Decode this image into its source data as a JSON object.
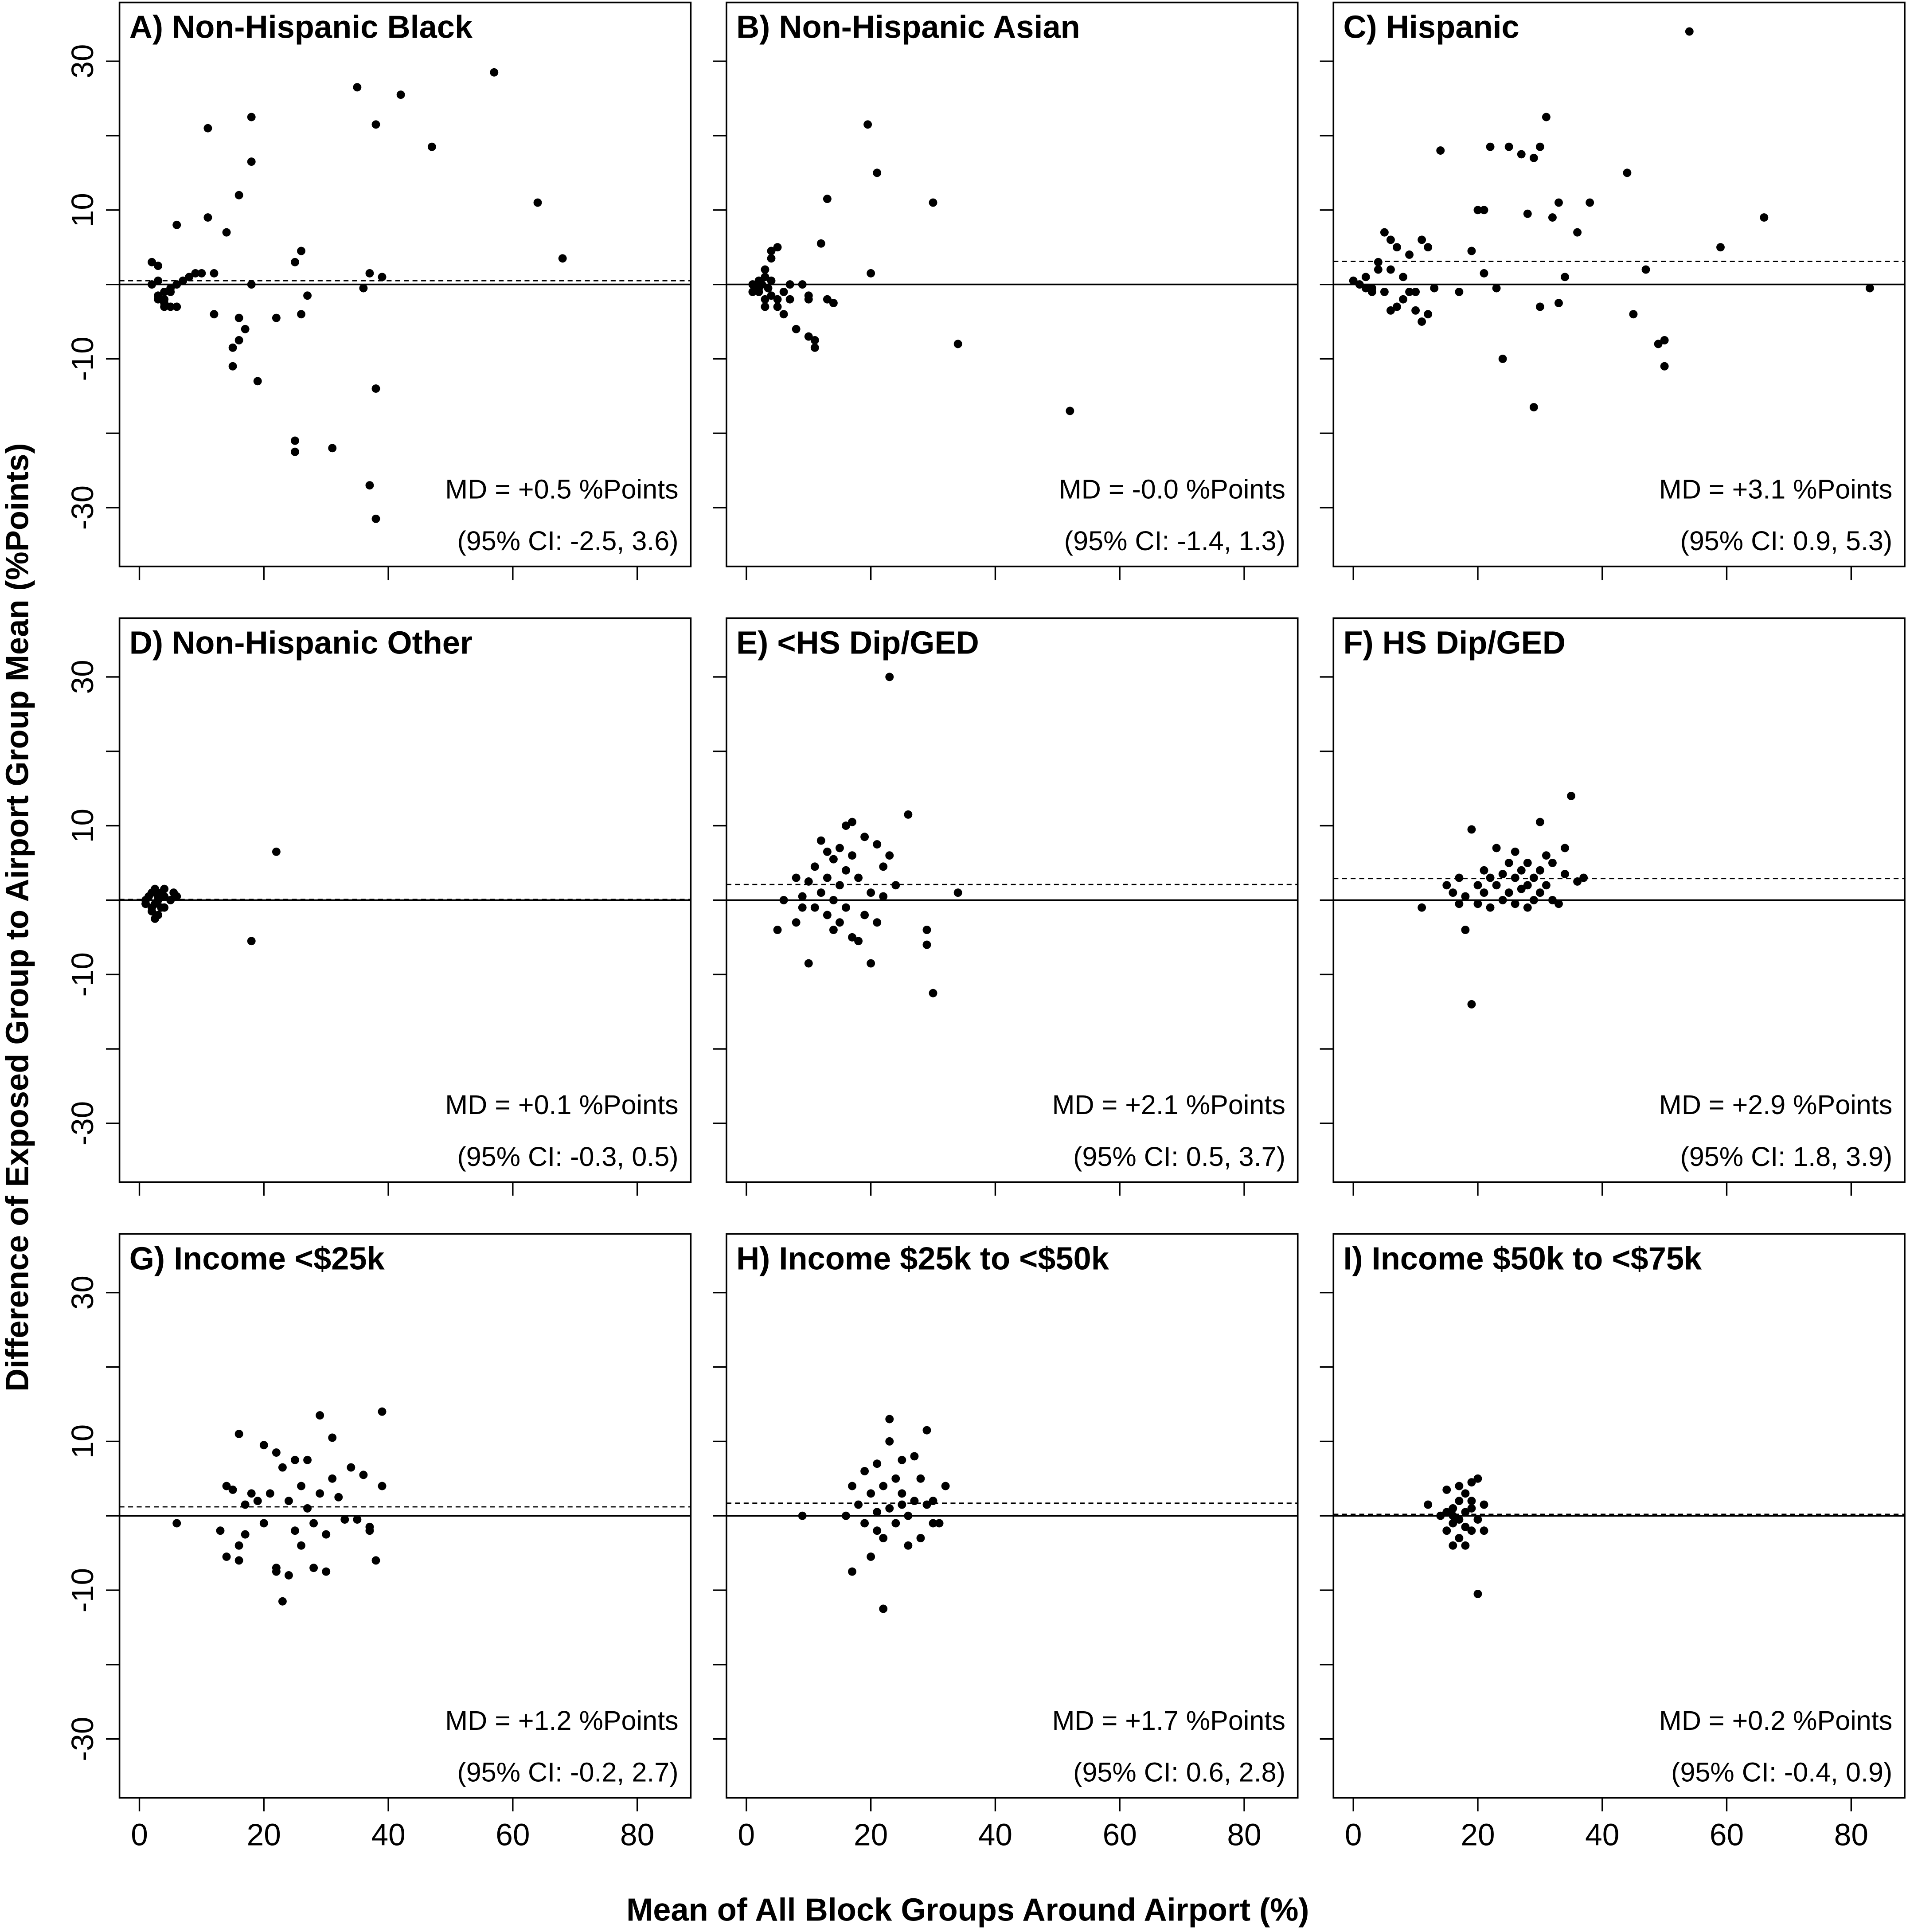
{
  "axis_labels": {
    "x": "Mean of All Block Groups Around Airport (%)",
    "y": "Difference of Exposed Group to Airport Group Mean (%Points)"
  },
  "chart_data": [
    {
      "type": "scatter",
      "title": "A) Non-Hispanic Black",
      "color": "#000000",
      "reference_line": 0,
      "md": 0.5,
      "annotations": [
        "MD = +0.5 %Points",
        "(95% CI: -2.5, 3.6)"
      ],
      "x": [
        2,
        3,
        3,
        4,
        3,
        4,
        5,
        6,
        4,
        5,
        6,
        7,
        5,
        6,
        8,
        9,
        10,
        11,
        11,
        12,
        12,
        14,
        15,
        15,
        16,
        16,
        16,
        17,
        18,
        18,
        18,
        19,
        22,
        25,
        25,
        25,
        26,
        26,
        27,
        31,
        35,
        36,
        37,
        37,
        38,
        38,
        38,
        39,
        42,
        47,
        57,
        64,
        68,
        3,
        2,
        4
      ],
      "y": [
        3,
        2.5,
        0.5,
        -1,
        -1.5,
        -2,
        -3,
        -3,
        -3,
        -1,
        0,
        0.5,
        -0.5,
        8,
        1,
        1.5,
        1.5,
        21,
        9,
        -4,
        1.5,
        7,
        -11,
        -8.5,
        12,
        -4.5,
        -7.5,
        -6,
        16.5,
        0,
        22.5,
        -13,
        -4.5,
        -21,
        -22.5,
        3,
        4.5,
        -4,
        -1.5,
        -22,
        26.5,
        -0.5,
        -27,
        1.5,
        21.5,
        -14,
        -31.5,
        1,
        25.5,
        18.5,
        28.5,
        11,
        3.5,
        -2,
        0,
        -2.5
      ],
      "xlim": [
        -3.2,
        88.6
      ],
      "ylim": [
        -37.9,
        37.9
      ],
      "xticks": [
        {
          "value": 0,
          "label": null
        },
        {
          "value": 20,
          "label": null
        },
        {
          "value": 40,
          "label": null
        },
        {
          "value": 60,
          "label": null
        },
        {
          "value": 80,
          "label": null
        }
      ],
      "yticks": [
        -30,
        {
          "value": -20,
          "label": null
        },
        -10,
        {
          "value": 0,
          "label": null
        },
        10,
        {
          "value": 20,
          "label": null
        },
        30
      ]
    },
    {
      "type": "scatter",
      "title": "B) Non-Hispanic Asian",
      "color": "#000000",
      "reference_line": 0,
      "md": -0.0,
      "annotations": [
        "MD = -0.0 %Points",
        "(95% CI: -1.4, 1.3)"
      ],
      "x": [
        1,
        1.5,
        2,
        2,
        2.5,
        3,
        3,
        3.5,
        4,
        4,
        4,
        5,
        4,
        5,
        5,
        6,
        6,
        7,
        7,
        8,
        9,
        10,
        10,
        11,
        10,
        11,
        12,
        13,
        13,
        14,
        19.5,
        20,
        21,
        30,
        34,
        52,
        3,
        2,
        1,
        3
      ],
      "y": [
        0,
        -0.5,
        0.5,
        -1,
        0,
        -2,
        1,
        -0.5,
        -1.5,
        0.5,
        4.5,
        5,
        3.5,
        -2,
        -3,
        -1,
        -4,
        0,
        -2,
        -6,
        0,
        -1.5,
        -7,
        -8.5,
        -2,
        -7.5,
        5.5,
        11.5,
        -2,
        -2.5,
        21.5,
        1.5,
        15,
        11,
        -8,
        -17,
        2,
        -0.5,
        -1,
        -3
      ],
      "xlim": [
        -3.2,
        88.6
      ],
      "ylim": [
        -37.9,
        37.9
      ],
      "xticks": [
        {
          "value": 0,
          "label": null
        },
        {
          "value": 20,
          "label": null
        },
        {
          "value": 40,
          "label": null
        },
        {
          "value": 60,
          "label": null
        },
        {
          "value": 80,
          "label": null
        }
      ],
      "yticks": [
        {
          "value": -30,
          "label": null
        },
        {
          "value": -20,
          "label": null
        },
        {
          "value": -10,
          "label": null
        },
        {
          "value": 0,
          "label": null
        },
        {
          "value": 10,
          "label": null
        },
        {
          "value": 20,
          "label": null
        },
        {
          "value": 30,
          "label": null
        }
      ]
    },
    {
      "type": "scatter",
      "title": "C) Hispanic",
      "color": "#000000",
      "reference_line": 0,
      "md": 3.1,
      "annotations": [
        "MD = +3.1 %Points",
        "(95% CI: 0.9, 5.3)"
      ],
      "x": [
        0,
        1,
        2,
        2,
        3,
        3,
        4,
        4,
        5,
        5,
        6,
        6,
        6,
        7,
        7,
        8,
        8,
        9,
        9,
        10,
        10,
        11,
        11,
        12,
        12,
        13,
        14,
        17,
        19,
        20,
        21,
        21,
        22,
        23,
        24,
        25,
        27,
        28,
        29,
        29,
        30,
        30,
        31,
        32,
        33,
        33,
        34,
        36,
        38,
        44,
        45,
        47,
        49,
        50,
        50,
        54,
        59,
        66,
        83
      ],
      "y": [
        0.5,
        0,
        -0.5,
        1,
        -0.5,
        -1,
        2,
        3,
        7,
        -1,
        6,
        2,
        -3.5,
        -3,
        5,
        -2,
        1,
        4,
        -1,
        -3.5,
        -1,
        -5,
        6,
        -4,
        5,
        -0.5,
        18,
        -1,
        4.5,
        10,
        10,
        1.5,
        18.5,
        -0.5,
        -10,
        18.5,
        17.5,
        9.5,
        -16.5,
        17,
        18.5,
        -3,
        22.5,
        9,
        -2.5,
        11,
        1,
        7,
        11,
        15,
        -4,
        2,
        -8,
        -11,
        -7.5,
        34,
        5,
        9,
        -0.5
      ],
      "xlim": [
        -3.2,
        88.6
      ],
      "ylim": [
        -37.9,
        37.9
      ],
      "xticks": [
        {
          "value": 0,
          "label": null
        },
        {
          "value": 20,
          "label": null
        },
        {
          "value": 40,
          "label": null
        },
        {
          "value": 60,
          "label": null
        },
        {
          "value": 80,
          "label": null
        }
      ],
      "yticks": [
        {
          "value": -30,
          "label": null
        },
        {
          "value": -20,
          "label": null
        },
        {
          "value": -10,
          "label": null
        },
        {
          "value": 0,
          "label": null
        },
        {
          "value": 10,
          "label": null
        },
        {
          "value": 20,
          "label": null
        },
        {
          "value": 30,
          "label": null
        }
      ]
    },
    {
      "type": "scatter",
      "title": "D) Non-Hispanic Other",
      "color": "#000000",
      "reference_line": 0,
      "md": 0.1,
      "annotations": [
        "MD = +0.1 %Points",
        "(95% CI: -0.3, 0.5)"
      ],
      "x": [
        1,
        1.5,
        2,
        2,
        2.5,
        2.5,
        3,
        3,
        3.5,
        3,
        4,
        4,
        5,
        5.5,
        6,
        2,
        1,
        4,
        3.5,
        2.5,
        22,
        18
      ],
      "y": [
        0,
        0.5,
        -1,
        1,
        1.5,
        -0.5,
        0,
        -2,
        1,
        0.5,
        -1,
        0.5,
        0,
        1,
        0.5,
        -1.5,
        -0.5,
        1.5,
        -1,
        -2.5,
        6.5,
        -5.5
      ],
      "xlim": [
        -3.2,
        88.6
      ],
      "ylim": [
        -37.9,
        37.9
      ],
      "xticks": [
        {
          "value": 0,
          "label": null
        },
        {
          "value": 20,
          "label": null
        },
        {
          "value": 40,
          "label": null
        },
        {
          "value": 60,
          "label": null
        },
        {
          "value": 80,
          "label": null
        }
      ],
      "yticks": [
        -30,
        {
          "value": -20,
          "label": null
        },
        -10,
        {
          "value": 0,
          "label": null
        },
        10,
        {
          "value": 20,
          "label": null
        },
        30
      ]
    },
    {
      "type": "scatter",
      "title": "E) <HS Dip/GED",
      "color": "#000000",
      "reference_line": 0,
      "md": 2.1,
      "annotations": [
        "MD = +2.1 %Points",
        "(95% CI: 0.5, 3.7)"
      ],
      "x": [
        5,
        6,
        8,
        8,
        9,
        9,
        10,
        10,
        11,
        11,
        12,
        12,
        13,
        13,
        13,
        14,
        14,
        14,
        15,
        15,
        15,
        16,
        16,
        16,
        17,
        17,
        17,
        18,
        18,
        19,
        19,
        20,
        20,
        21,
        21,
        22,
        22,
        23,
        23,
        24,
        26,
        29,
        29,
        30,
        34
      ],
      "y": [
        -4,
        0,
        -3,
        3,
        -1,
        0.5,
        -8.5,
        2.5,
        -1,
        4.5,
        1,
        8,
        6.5,
        -2,
        3,
        5.5,
        0,
        -4,
        7,
        2,
        -3,
        10,
        4,
        -1,
        10.5,
        6,
        -5,
        3,
        -5.5,
        8.5,
        -2,
        -8.5,
        1,
        7.5,
        -3,
        4.5,
        0.5,
        30,
        6,
        2,
        11.5,
        -4,
        -6,
        -12.5,
        1
      ],
      "xlim": [
        -3.2,
        88.6
      ],
      "ylim": [
        -37.9,
        37.9
      ],
      "xticks": [
        {
          "value": 0,
          "label": null
        },
        {
          "value": 20,
          "label": null
        },
        {
          "value": 40,
          "label": null
        },
        {
          "value": 60,
          "label": null
        },
        {
          "value": 80,
          "label": null
        }
      ],
      "yticks": [
        {
          "value": -30,
          "label": null
        },
        {
          "value": -20,
          "label": null
        },
        {
          "value": -10,
          "label": null
        },
        {
          "value": 0,
          "label": null
        },
        {
          "value": 10,
          "label": null
        },
        {
          "value": 20,
          "label": null
        },
        {
          "value": 30,
          "label": null
        }
      ]
    },
    {
      "type": "scatter",
      "title": "F) HS Dip/GED",
      "color": "#000000",
      "reference_line": 0,
      "md": 2.9,
      "annotations": [
        "MD = +2.9 %Points",
        "(95% CI: 1.8, 3.9)"
      ],
      "x": [
        11,
        15,
        16,
        17,
        17,
        18,
        18,
        19,
        19,
        20,
        20,
        21,
        21,
        22,
        22,
        23,
        23,
        24,
        24,
        25,
        25,
        26,
        26,
        26,
        27,
        27,
        28,
        28,
        28,
        29,
        29,
        30,
        30,
        30,
        31,
        31,
        32,
        32,
        33,
        34,
        34,
        35,
        36,
        37
      ],
      "y": [
        -1,
        2,
        1,
        3,
        -0.5,
        -4,
        0.5,
        9.5,
        -14,
        2,
        -0.5,
        4,
        1,
        3,
        -1,
        7,
        2,
        3.5,
        0,
        5,
        1,
        6.5,
        3,
        -0.5,
        4,
        1.5,
        5,
        2,
        -1,
        3,
        0,
        10.5,
        4,
        1,
        6,
        2,
        5,
        0,
        -0.5,
        7,
        3.5,
        14,
        2.5,
        3
      ],
      "xlim": [
        -3.2,
        88.6
      ],
      "ylim": [
        -37.9,
        37.9
      ],
      "xticks": [
        {
          "value": 0,
          "label": null
        },
        {
          "value": 20,
          "label": null
        },
        {
          "value": 40,
          "label": null
        },
        {
          "value": 60,
          "label": null
        },
        {
          "value": 80,
          "label": null
        }
      ],
      "yticks": [
        {
          "value": -30,
          "label": null
        },
        {
          "value": -20,
          "label": null
        },
        {
          "value": -10,
          "label": null
        },
        {
          "value": 0,
          "label": null
        },
        {
          "value": 10,
          "label": null
        },
        {
          "value": 20,
          "label": null
        },
        {
          "value": 30,
          "label": null
        }
      ]
    },
    {
      "type": "scatter",
      "title": "G) Income <$25k",
      "color": "#000000",
      "reference_line": 0,
      "md": 1.2,
      "annotations": [
        "MD = +1.2 %Points",
        "(95% CI: -0.2, 2.7)"
      ],
      "x": [
        6,
        13,
        14,
        14,
        15,
        16,
        16,
        16,
        17,
        17,
        18,
        19,
        20,
        20,
        21,
        22,
        22,
        22,
        23,
        23,
        24,
        24,
        25,
        25,
        26,
        26,
        27,
        27,
        28,
        28,
        29,
        29,
        30,
        30,
        31,
        31,
        32,
        33,
        34,
        35,
        36,
        37,
        37,
        38,
        39,
        39
      ],
      "y": [
        -1,
        -2,
        -5.5,
        4,
        3.5,
        11,
        -6,
        -4,
        -2.5,
        1.5,
        3,
        2,
        9.5,
        -1,
        3,
        -7,
        8.5,
        -7.5,
        -11.5,
        6.5,
        -8,
        2,
        -2,
        7.5,
        -4,
        4,
        1,
        7.5,
        -7,
        -1,
        3,
        13.5,
        -7.5,
        -2.5,
        5,
        10.5,
        2.5,
        -0.5,
        6.5,
        -0.5,
        5.5,
        -1.5,
        -2,
        -6,
        14,
        4
      ],
      "xlim": [
        -3.2,
        88.6
      ],
      "ylim": [
        -37.9,
        37.9
      ],
      "xticks": [
        0,
        20,
        40,
        60,
        80
      ],
      "yticks": [
        -30,
        {
          "value": -20,
          "label": null
        },
        -10,
        {
          "value": 0,
          "label": null
        },
        10,
        {
          "value": 20,
          "label": null
        },
        30
      ]
    },
    {
      "type": "scatter",
      "title": "H) Income $25k to <$50k",
      "color": "#000000",
      "reference_line": 0,
      "md": 1.7,
      "annotations": [
        "MD = +1.7 %Points",
        "(95% CI: 0.6, 2.8)"
      ],
      "x": [
        9,
        16,
        17,
        17,
        18,
        19,
        19,
        20,
        20,
        21,
        21,
        21,
        22,
        22,
        22,
        23,
        23,
        24,
        24,
        25,
        25,
        25,
        26,
        26,
        27,
        27,
        28,
        28,
        29,
        29,
        30,
        30,
        31,
        32,
        23
      ],
      "y": [
        0,
        0,
        -7.5,
        4,
        1.5,
        -1,
        6,
        3,
        -5.5,
        0.5,
        -2,
        7,
        -12.5,
        4,
        -3,
        1,
        13,
        5,
        -1,
        3,
        1.5,
        7.5,
        0,
        -4,
        2,
        8,
        -3,
        5,
        1.5,
        11.5,
        -1,
        2,
        -1,
        4,
        10
      ],
      "xlim": [
        -3.2,
        88.6
      ],
      "ylim": [
        -37.9,
        37.9
      ],
      "xticks": [
        0,
        20,
        40,
        60,
        80
      ],
      "yticks": [
        {
          "value": -30,
          "label": null
        },
        {
          "value": -20,
          "label": null
        },
        {
          "value": -10,
          "label": null
        },
        {
          "value": 0,
          "label": null
        },
        {
          "value": 10,
          "label": null
        },
        {
          "value": 20,
          "label": null
        },
        {
          "value": 30,
          "label": null
        }
      ]
    },
    {
      "type": "scatter",
      "title": "I) Income $50k to <$75k",
      "color": "#000000",
      "reference_line": 0,
      "md": 0.2,
      "annotations": [
        "MD = +0.2 %Points",
        "(95% CI: -0.4, 0.9)"
      ],
      "x": [
        12,
        15,
        15,
        16,
        16,
        16,
        17,
        17,
        17,
        17,
        18,
        18,
        18,
        18,
        19,
        19,
        19,
        19,
        20,
        20,
        20,
        21,
        21,
        16,
        15,
        14
      ],
      "y": [
        1.5,
        -2,
        3.5,
        -1,
        1,
        0,
        4,
        -3,
        2,
        -0.5,
        3,
        -1.5,
        0.5,
        -4,
        2,
        -2,
        1,
        4.5,
        5,
        -10.5,
        -0.5,
        -2,
        1.5,
        -4,
        0.5,
        0
      ],
      "xlim": [
        -3.2,
        88.6
      ],
      "ylim": [
        -37.9,
        37.9
      ],
      "xticks": [
        0,
        20,
        40,
        60,
        80
      ],
      "yticks": [
        {
          "value": -30,
          "label": null
        },
        {
          "value": -20,
          "label": null
        },
        {
          "value": -10,
          "label": null
        },
        {
          "value": 0,
          "label": null
        },
        {
          "value": 10,
          "label": null
        },
        {
          "value": 20,
          "label": null
        },
        {
          "value": 30,
          "label": null
        }
      ]
    }
  ]
}
